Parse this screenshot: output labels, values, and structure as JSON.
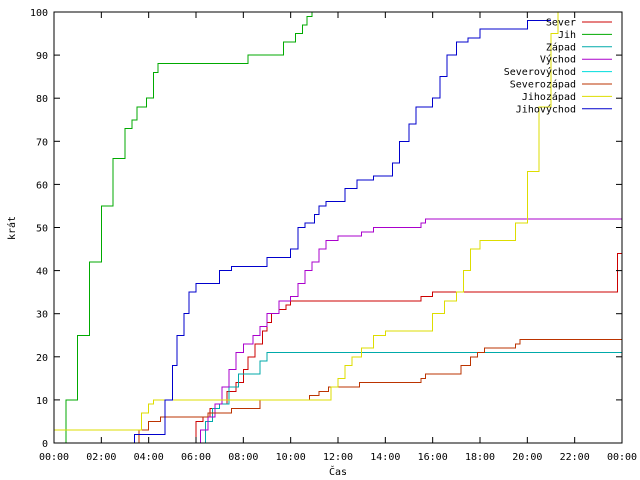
{
  "chart_data": {
    "type": "line",
    "title": "",
    "xlabel": "Čas",
    "ylabel": "krát",
    "xlim": [
      0,
      24
    ],
    "ylim": [
      0,
      100
    ],
    "grid": false,
    "legend_position": "top-right",
    "x_ticks": [
      0,
      2,
      4,
      6,
      8,
      10,
      12,
      14,
      16,
      18,
      20,
      22,
      24
    ],
    "x_tick_labels": [
      "00:00",
      "02:00",
      "04:00",
      "06:00",
      "08:00",
      "10:00",
      "12:00",
      "14:00",
      "16:00",
      "18:00",
      "20:00",
      "22:00",
      "00:00"
    ],
    "y_ticks": [
      0,
      10,
      20,
      30,
      40,
      50,
      60,
      70,
      80,
      90,
      100
    ],
    "y_tick_labels": [
      "0",
      "10",
      "20",
      "30",
      "40",
      "50",
      "60",
      "70",
      "80",
      "90",
      "100"
    ],
    "series": [
      {
        "name": "Sever",
        "color": "#cc0000",
        "points": [
          [
            5.9,
            0
          ],
          [
            6.0,
            5
          ],
          [
            6.3,
            6
          ],
          [
            6.6,
            8
          ],
          [
            7.0,
            9
          ],
          [
            7.3,
            12
          ],
          [
            7.7,
            14
          ],
          [
            8.0,
            17
          ],
          [
            8.2,
            20
          ],
          [
            8.5,
            23
          ],
          [
            8.8,
            26
          ],
          [
            9.0,
            28
          ],
          [
            9.2,
            30
          ],
          [
            9.5,
            31
          ],
          [
            9.8,
            32
          ],
          [
            10.0,
            33
          ],
          [
            12.0,
            33
          ],
          [
            15.5,
            34
          ],
          [
            16.0,
            35
          ],
          [
            17.0,
            35
          ],
          [
            23.5,
            35
          ],
          [
            23.8,
            44
          ],
          [
            24.0,
            46
          ]
        ]
      },
      {
        "name": "Jih",
        "color": "#00aa00",
        "points": [
          [
            0.2,
            0
          ],
          [
            0.5,
            10
          ],
          [
            1.0,
            25
          ],
          [
            1.5,
            42
          ],
          [
            2.0,
            55
          ],
          [
            2.5,
            66
          ],
          [
            3.0,
            73
          ],
          [
            3.3,
            75
          ],
          [
            3.5,
            78
          ],
          [
            3.9,
            80
          ],
          [
            4.2,
            86
          ],
          [
            4.4,
            88
          ],
          [
            8.0,
            88
          ],
          [
            8.2,
            90
          ],
          [
            9.5,
            90
          ],
          [
            9.7,
            93
          ],
          [
            10.2,
            95
          ],
          [
            10.5,
            97
          ],
          [
            10.7,
            99
          ],
          [
            10.9,
            100
          ]
        ]
      },
      {
        "name": "Západ",
        "color": "#00aaaa",
        "points": [
          [
            6.2,
            0
          ],
          [
            6.4,
            5
          ],
          [
            6.7,
            8
          ],
          [
            7.0,
            9
          ],
          [
            7.4,
            13
          ],
          [
            7.8,
            16
          ],
          [
            8.4,
            16
          ],
          [
            8.7,
            19
          ],
          [
            9.0,
            21
          ],
          [
            24.0,
            21
          ]
        ]
      },
      {
        "name": "Východ",
        "color": "#aa00cc",
        "points": [
          [
            6.0,
            0
          ],
          [
            6.2,
            3
          ],
          [
            6.5,
            6
          ],
          [
            6.8,
            9
          ],
          [
            7.1,
            13
          ],
          [
            7.4,
            17
          ],
          [
            7.7,
            21
          ],
          [
            8.0,
            23
          ],
          [
            8.4,
            25
          ],
          [
            8.7,
            27
          ],
          [
            9.0,
            30
          ],
          [
            9.5,
            33
          ],
          [
            10.0,
            34
          ],
          [
            10.3,
            37
          ],
          [
            10.6,
            40
          ],
          [
            10.9,
            42
          ],
          [
            11.2,
            45
          ],
          [
            11.5,
            47
          ],
          [
            12.0,
            48
          ],
          [
            12.7,
            48
          ],
          [
            13.0,
            49
          ],
          [
            13.5,
            50
          ],
          [
            15.5,
            51
          ],
          [
            15.7,
            52
          ],
          [
            24.0,
            52
          ]
        ]
      },
      {
        "name": "Severovýchod",
        "color": "#00dddd",
        "points": []
      },
      {
        "name": "Severozápad",
        "color": "#bb3300",
        "points": [
          [
            3.3,
            0
          ],
          [
            3.6,
            3
          ],
          [
            4.0,
            5
          ],
          [
            4.5,
            6
          ],
          [
            6.3,
            6
          ],
          [
            6.5,
            7
          ],
          [
            7.5,
            8
          ],
          [
            8.4,
            8
          ],
          [
            8.7,
            10
          ],
          [
            10.2,
            10
          ],
          [
            10.8,
            11
          ],
          [
            11.2,
            12
          ],
          [
            11.6,
            13
          ],
          [
            12.5,
            13
          ],
          [
            12.9,
            14
          ],
          [
            13.2,
            14
          ],
          [
            15.0,
            14
          ],
          [
            15.5,
            15
          ],
          [
            15.7,
            16
          ],
          [
            16.5,
            16
          ],
          [
            17.2,
            18
          ],
          [
            17.6,
            20
          ],
          [
            17.9,
            21
          ],
          [
            18.2,
            22
          ],
          [
            19.5,
            23
          ],
          [
            19.7,
            24
          ],
          [
            24.0,
            24
          ]
        ]
      },
      {
        "name": "Jihozápad",
        "color": "#dddd00",
        "points": [
          [
            0,
            3
          ],
          [
            3.5,
            3
          ],
          [
            3.7,
            7
          ],
          [
            4.0,
            9
          ],
          [
            4.2,
            10
          ],
          [
            11.5,
            10
          ],
          [
            11.7,
            13
          ],
          [
            12.0,
            15
          ],
          [
            12.3,
            18
          ],
          [
            12.6,
            20
          ],
          [
            13.0,
            22
          ],
          [
            13.5,
            25
          ],
          [
            14.0,
            26
          ],
          [
            15.5,
            26
          ],
          [
            16.0,
            30
          ],
          [
            16.5,
            33
          ],
          [
            17.0,
            35
          ],
          [
            17.3,
            40
          ],
          [
            17.6,
            45
          ],
          [
            18.0,
            47
          ],
          [
            19.0,
            47
          ],
          [
            19.5,
            51
          ],
          [
            20.0,
            63
          ],
          [
            20.5,
            78
          ],
          [
            21.0,
            95
          ],
          [
            21.3,
            100
          ]
        ]
      },
      {
        "name": "Jihovýchod",
        "color": "#0000cc",
        "points": [
          [
            3.2,
            0
          ],
          [
            3.4,
            2
          ],
          [
            4.5,
            2
          ],
          [
            4.7,
            10
          ],
          [
            5.0,
            18
          ],
          [
            5.2,
            25
          ],
          [
            5.5,
            30
          ],
          [
            5.7,
            35
          ],
          [
            6.0,
            37
          ],
          [
            6.5,
            37
          ],
          [
            7.0,
            40
          ],
          [
            7.5,
            41
          ],
          [
            8.5,
            41
          ],
          [
            9.0,
            43
          ],
          [
            9.5,
            43
          ],
          [
            10.0,
            45
          ],
          [
            10.3,
            50
          ],
          [
            10.6,
            51
          ],
          [
            11.0,
            53
          ],
          [
            11.2,
            55
          ],
          [
            11.5,
            56
          ],
          [
            12.0,
            56
          ],
          [
            12.3,
            59
          ],
          [
            12.8,
            61
          ],
          [
            13.5,
            62
          ],
          [
            14.0,
            62
          ],
          [
            14.3,
            65
          ],
          [
            14.6,
            70
          ],
          [
            15.0,
            74
          ],
          [
            15.3,
            78
          ],
          [
            15.8,
            78
          ],
          [
            16.0,
            80
          ],
          [
            16.3,
            85
          ],
          [
            16.6,
            90
          ],
          [
            17.0,
            93
          ],
          [
            17.5,
            94
          ],
          [
            18.0,
            96
          ],
          [
            19.0,
            96
          ],
          [
            20.0,
            98
          ],
          [
            21.0,
            98
          ]
        ]
      }
    ]
  }
}
